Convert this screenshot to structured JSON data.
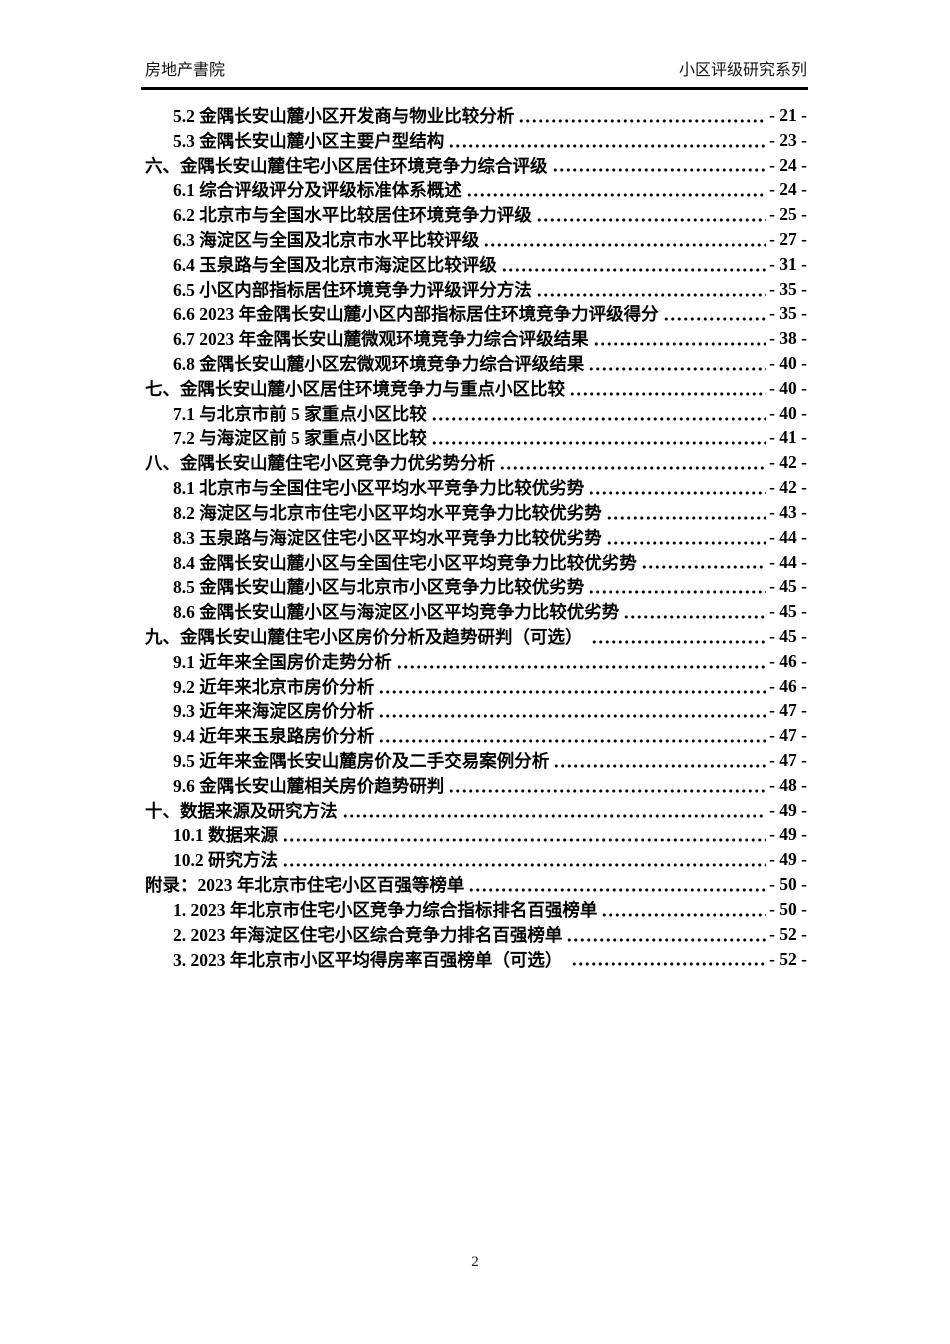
{
  "document": {
    "header": {
      "left": "房地产書院",
      "right": "小区评级研究系列"
    },
    "footer": {
      "page_number": "2"
    },
    "toc_entries": [
      {
        "indent": true,
        "label": "5.2 金隅长安山麓小区开发商与物业比较分析",
        "page_label": "- 21 -"
      },
      {
        "indent": true,
        "label": "5.3 金隅长安山麓小区主要户型结构",
        "page_label": "- 23 -"
      },
      {
        "indent": false,
        "label": "六、金隅长安山麓住宅小区居住环境竞争力综合评级",
        "page_label": "- 24 -"
      },
      {
        "indent": true,
        "label": "6.1 综合评级评分及评级标准体系概述",
        "page_label": "- 24 -"
      },
      {
        "indent": true,
        "label": "6.2 北京市与全国水平比较居住环境竞争力评级",
        "page_label": "- 25 -"
      },
      {
        "indent": true,
        "label": "6.3 海淀区与全国及北京市水平比较评级",
        "page_label": "- 27 -"
      },
      {
        "indent": true,
        "label": "6.4 玉泉路与全国及北京市海淀区比较评级",
        "page_label": "- 31 -"
      },
      {
        "indent": true,
        "label": "6.5 小区内部指标居住环境竞争力评级评分方法",
        "page_label": "- 35 -"
      },
      {
        "indent": true,
        "label": "6.6 2023 年金隅长安山麓小区内部指标居住环境竞争力评级得分",
        "page_label": "- 35 -"
      },
      {
        "indent": true,
        "label": "6.7 2023 年金隅长安山麓微观环境竞争力综合评级结果",
        "page_label": "- 38 -"
      },
      {
        "indent": true,
        "label": "6.8 金隅长安山麓小区宏微观环境竞争力综合评级结果",
        "page_label": "- 40 -"
      },
      {
        "indent": false,
        "label": "七、金隅长安山麓小区居住环境竞争力与重点小区比较",
        "page_label": "- 40 -"
      },
      {
        "indent": true,
        "label": "7.1 与北京市前 5 家重点小区比较",
        "page_label": "- 40 -"
      },
      {
        "indent": true,
        "label": "7.2 与海淀区前 5 家重点小区比较",
        "page_label": "- 41 -"
      },
      {
        "indent": false,
        "label": "八、金隅长安山麓住宅小区竞争力优劣势分析",
        "page_label": "- 42 -"
      },
      {
        "indent": true,
        "label": "8.1 北京市与全国住宅小区平均水平竞争力比较优劣势",
        "page_label": "- 42 -"
      },
      {
        "indent": true,
        "label": "8.2 海淀区与北京市住宅小区平均水平竞争力比较优劣势",
        "page_label": "- 43 -"
      },
      {
        "indent": true,
        "label": "8.3 玉泉路与海淀区住宅小区平均水平竞争力比较优劣势",
        "page_label": "- 44 -"
      },
      {
        "indent": true,
        "label": "8.4 金隅长安山麓小区与全国住宅小区平均竞争力比较优劣势",
        "page_label": "- 44 -"
      },
      {
        "indent": true,
        "label": "8.5 金隅长安山麓小区与北京市小区竞争力比较优劣势",
        "page_label": "- 45 -"
      },
      {
        "indent": true,
        "label": "8.6 金隅长安山麓小区与海淀区小区平均竞争力比较优劣势",
        "page_label": "- 45 -"
      },
      {
        "indent": false,
        "label": "九、金隅长安山麓住宅小区房价分析及趋势研判（可选） ",
        "page_label": "- 45 -"
      },
      {
        "indent": true,
        "label": "9.1 近年来全国房价走势分析",
        "page_label": "- 46 -"
      },
      {
        "indent": true,
        "label": "9.2 近年来北京市房价分析",
        "page_label": "- 46 -"
      },
      {
        "indent": true,
        "label": "9.3 近年来海淀区房价分析",
        "page_label": "- 47 -"
      },
      {
        "indent": true,
        "label": "9.4 近年来玉泉路房价分析",
        "page_label": "- 47 -"
      },
      {
        "indent": true,
        "label": "9.5 近年来金隅长安山麓房价及二手交易案例分析",
        "page_label": "- 47 -"
      },
      {
        "indent": true,
        "label": "9.6 金隅长安山麓相关房价趋势研判",
        "page_label": "- 48 -"
      },
      {
        "indent": false,
        "label": "十、数据来源及研究方法",
        "page_label": "- 49 -"
      },
      {
        "indent": true,
        "label": "10.1 数据来源",
        "page_label": "- 49 -"
      },
      {
        "indent": true,
        "label": "10.2 研究方法",
        "page_label": "- 49 -"
      },
      {
        "indent": false,
        "label": "附录：2023 年北京市住宅小区百强等榜单",
        "page_label": "- 50 -"
      },
      {
        "indent": true,
        "label": "1. 2023 年北京市住宅小区竞争力综合指标排名百强榜单",
        "page_label": "- 50 -"
      },
      {
        "indent": true,
        "label": "2. 2023 年海淀区住宅小区综合竞争力排名百强榜单",
        "page_label": "- 52 -"
      },
      {
        "indent": true,
        "label": "3. 2023 年北京市小区平均得房率百强榜单（可选） ",
        "page_label": "- 52 -"
      }
    ]
  }
}
